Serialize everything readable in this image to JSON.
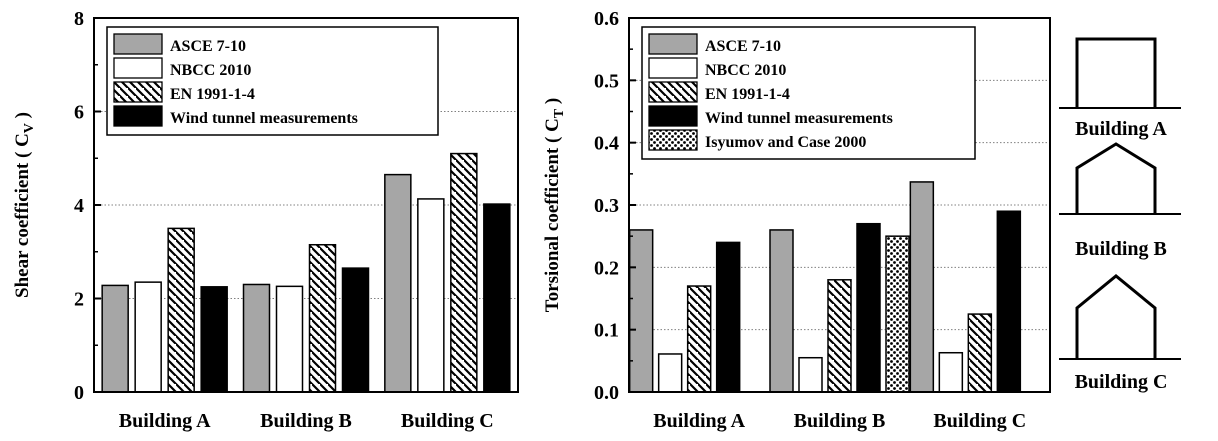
{
  "styles": {
    "ASCE 7-10": "gray",
    "NBCC 2010": "white",
    "EN 1991-1-4": "hatch",
    "Wind tunnel measurements": "black",
    "Isyumov and Case 2000": "dots"
  },
  "colors": {
    "gray": "#a6a6a6",
    "black": "#000000",
    "white": "#ffffff",
    "grid": "#808080"
  },
  "chart_data": [
    {
      "type": "bar",
      "ylabel_main": "Shear coefficient ( C",
      "ylabel_sub": "V",
      "ylabel_close": " )",
      "categories": [
        "Building A",
        "Building B",
        "Building C"
      ],
      "ylim": [
        0,
        8
      ],
      "yticks": [
        0,
        2,
        4,
        6,
        8
      ],
      "ytick_labels": [
        "0",
        "2",
        "4",
        "6",
        "8"
      ],
      "grid": "horizontal dotted",
      "legend_position": "top-left",
      "series": [
        {
          "name": "ASCE 7-10",
          "values": [
            2.28,
            2.3,
            4.65
          ]
        },
        {
          "name": "NBCC 2010",
          "values": [
            2.35,
            2.26,
            4.13
          ]
        },
        {
          "name": "EN 1991-1-4",
          "values": [
            3.5,
            3.15,
            5.1
          ]
        },
        {
          "name": "Wind tunnel measurements",
          "values": [
            2.25,
            2.65,
            4.02
          ]
        }
      ]
    },
    {
      "type": "bar",
      "ylabel_main": "Torsional coefficient ( C",
      "ylabel_sub": "T",
      "ylabel_close": " )",
      "categories": [
        "Building A",
        "Building B",
        "Building C"
      ],
      "ylim": [
        0,
        0.6
      ],
      "yticks": [
        0,
        0.1,
        0.2,
        0.3,
        0.4,
        0.5,
        0.6
      ],
      "ytick_labels": [
        "0.0",
        "0.1",
        "0.2",
        "0.3",
        "0.4",
        "0.5",
        "0.6"
      ],
      "grid": "horizontal dotted",
      "legend_position": "top-left",
      "series": [
        {
          "name": "ASCE 7-10",
          "values": [
            0.26,
            0.26,
            0.337
          ]
        },
        {
          "name": "NBCC 2010",
          "values": [
            0.061,
            0.055,
            0.063
          ]
        },
        {
          "name": "EN 1991-1-4",
          "values": [
            0.17,
            0.18,
            0.125
          ]
        },
        {
          "name": "Wind tunnel measurements",
          "values": [
            0.24,
            0.27,
            0.29
          ]
        },
        {
          "name": "Isyumov and Case 2000",
          "values": [
            null,
            0.25,
            null
          ]
        }
      ]
    }
  ],
  "buildings": [
    {
      "label": "Building A",
      "roof": "flat"
    },
    {
      "label": "Building B",
      "roof": "low-gable"
    },
    {
      "label": "Building C",
      "roof": "steep-gable"
    }
  ]
}
